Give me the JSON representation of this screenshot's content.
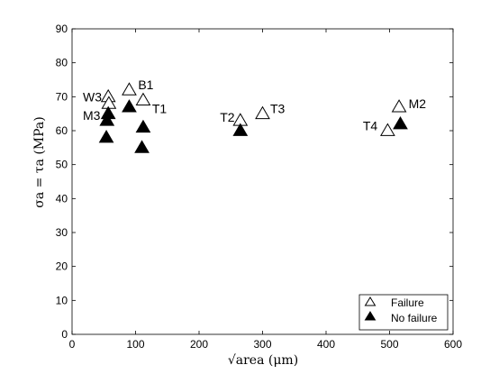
{
  "chart_data": {
    "type": "scatter",
    "title": "",
    "xlabel": "√area (μm)",
    "ylabel": "σa = τa (MPa)",
    "xlim": [
      0,
      600
    ],
    "ylim": [
      0,
      90
    ],
    "xticks": [
      0,
      100,
      200,
      300,
      400,
      500,
      600
    ],
    "yticks": [
      0,
      10,
      20,
      30,
      40,
      50,
      60,
      70,
      80,
      90
    ],
    "grid": false,
    "legend_position": "bottom-right",
    "series": [
      {
        "name": "Failure",
        "marker": "open-triangle",
        "color": "#000000",
        "points": [
          {
            "x": 57,
            "y": 70
          },
          {
            "x": 58,
            "y": 68
          },
          {
            "x": 90,
            "y": 72
          },
          {
            "x": 112,
            "y": 69
          },
          {
            "x": 265,
            "y": 63
          },
          {
            "x": 300,
            "y": 65
          },
          {
            "x": 497,
            "y": 60
          },
          {
            "x": 515,
            "y": 67
          }
        ]
      },
      {
        "name": "No failure",
        "marker": "filled-triangle",
        "color": "#000000",
        "points": [
          {
            "x": 57,
            "y": 65
          },
          {
            "x": 55,
            "y": 63
          },
          {
            "x": 54,
            "y": 58
          },
          {
            "x": 90,
            "y": 67
          },
          {
            "x": 112,
            "y": 61
          },
          {
            "x": 110,
            "y": 55
          },
          {
            "x": 265,
            "y": 60
          },
          {
            "x": 517,
            "y": 62
          }
        ]
      }
    ],
    "annotations": [
      {
        "text": "W3",
        "x": 17,
        "y": 70
      },
      {
        "text": "B1",
        "x": 104,
        "y": 73.5
      },
      {
        "text": "M3",
        "x": 17,
        "y": 64.5
      },
      {
        "text": "T1",
        "x": 126,
        "y": 66.5
      },
      {
        "text": "T2",
        "x": 233,
        "y": 64
      },
      {
        "text": "T3",
        "x": 312,
        "y": 66.5
      },
      {
        "text": "T4",
        "x": 458,
        "y": 61.5
      },
      {
        "text": "M2",
        "x": 530,
        "y": 68
      }
    ]
  }
}
